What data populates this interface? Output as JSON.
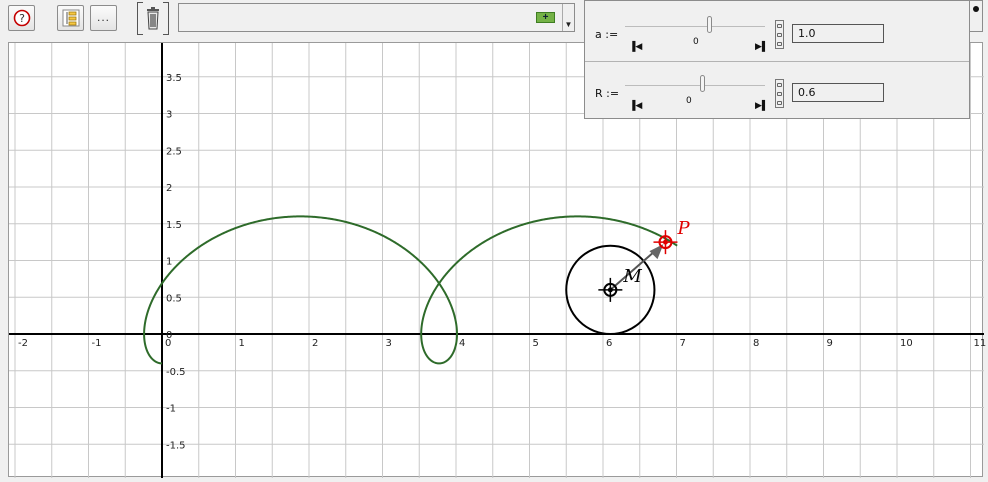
{
  "toolbar": {
    "help_icon": "question-circle-icon",
    "tree_icon": "object-tree-icon",
    "more_label": "...",
    "trash_icon": "trash-icon",
    "command_add_icon": "add-plus-icon",
    "command_value": ""
  },
  "axes": {
    "x_ticks": [
      "-2",
      "-1",
      "0",
      "1",
      "2",
      "3",
      "4",
      "5",
      "6",
      "7",
      "8",
      "9",
      "10",
      "11"
    ],
    "y_ticks": [
      "3.5",
      "3",
      "2.5",
      "2",
      "1.5",
      "1",
      "0.5",
      "0",
      "-0.5",
      "-1",
      "-1.5"
    ]
  },
  "points": {
    "P_label": "P",
    "M_label": "M"
  },
  "sliders": [
    {
      "label": "a :=",
      "min_label": "0",
      "value": "1.0",
      "position": 0.6
    },
    {
      "label": "R :=",
      "min_label": "0",
      "value": "0.6",
      "position": 0.55
    }
  ],
  "colors": {
    "curve": "#2e6b2a",
    "point_P": "#e00000",
    "point_M": "#000000",
    "grid": "#c8c8c8"
  }
}
